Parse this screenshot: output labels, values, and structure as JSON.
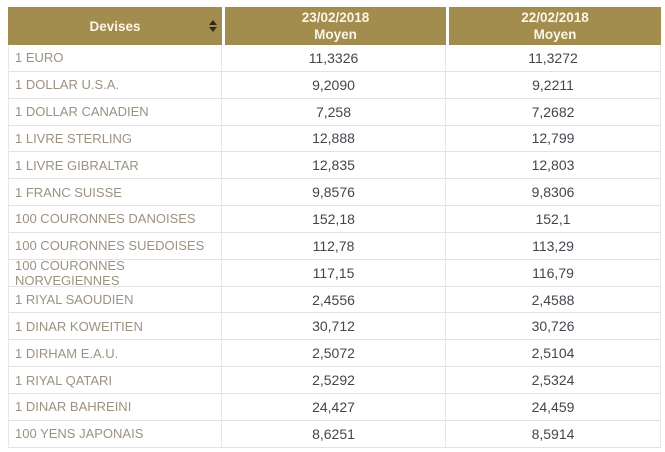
{
  "colors": {
    "header_background": "#A38D4E",
    "header_text": "#FBF5E7",
    "label_text": "#9C9280",
    "value_text": "#43464D",
    "grid_line": "#E3E3E3",
    "sort_icon": "#2E2A1E"
  },
  "table": {
    "columns": [
      {
        "label": "Devises",
        "sortable": true
      },
      {
        "date": "23/02/2018",
        "sub": "Moyen"
      },
      {
        "date": "22/02/2018",
        "sub": "Moyen"
      }
    ],
    "rows": [
      {
        "name": "1 EURO",
        "rate1": "11,3326",
        "rate2": "11,3272"
      },
      {
        "name": "1 DOLLAR U.S.A.",
        "rate1": "9,2090",
        "rate2": "9,2211"
      },
      {
        "name": "1 DOLLAR CANADIEN",
        "rate1": "7,258",
        "rate2": "7,2682"
      },
      {
        "name": "1 LIVRE STERLING",
        "rate1": "12,888",
        "rate2": "12,799"
      },
      {
        "name": "1 LIVRE GIBRALTAR",
        "rate1": "12,835",
        "rate2": "12,803"
      },
      {
        "name": "1 FRANC SUISSE",
        "rate1": "9,8576",
        "rate2": "9,8306"
      },
      {
        "name": "100 COURONNES DANOISES",
        "rate1": "152,18",
        "rate2": "152,1"
      },
      {
        "name": "100 COURONNES SUEDOISES",
        "rate1": "112,78",
        "rate2": "113,29"
      },
      {
        "name": "100 COURONNES NORVEGIENNES",
        "rate1": "117,15",
        "rate2": "116,79"
      },
      {
        "name": "1 RIYAL SAOUDIEN",
        "rate1": "2,4556",
        "rate2": "2,4588"
      },
      {
        "name": "1 DINAR KOWEITIEN",
        "rate1": "30,712",
        "rate2": "30,726"
      },
      {
        "name": "1 DIRHAM E.A.U.",
        "rate1": "2,5072",
        "rate2": "2,5104"
      },
      {
        "name": "1 RIYAL QATARI",
        "rate1": "2,5292",
        "rate2": "2,5324"
      },
      {
        "name": "1 DINAR BAHREINI",
        "rate1": "24,427",
        "rate2": "24,459"
      },
      {
        "name": "100 YENS JAPONAIS",
        "rate1": "8,6251",
        "rate2": "8,5914"
      }
    ]
  }
}
